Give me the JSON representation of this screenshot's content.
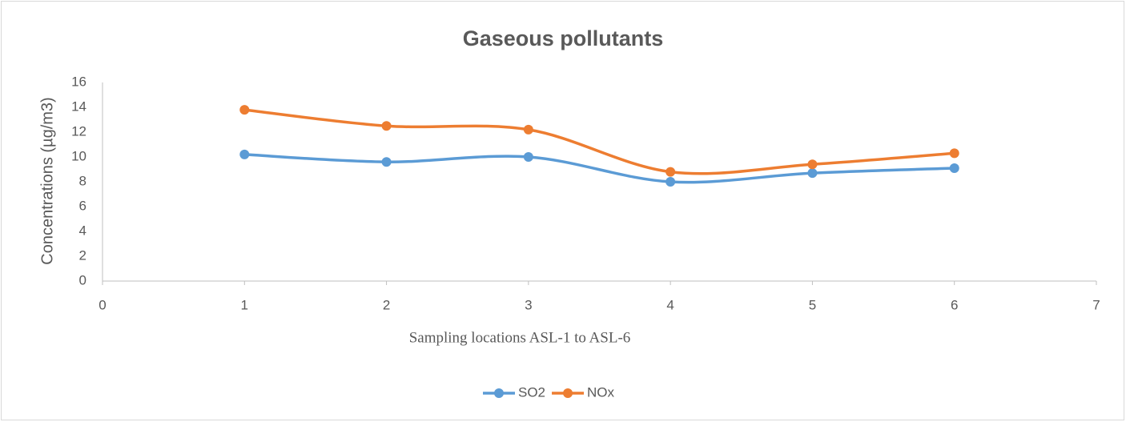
{
  "chart_data": {
    "type": "line",
    "title": "Gaseous pollutants",
    "x_label": "Sampling locations ASL-1 to ASL-6",
    "y_label": "Concentrations (µg/m3)",
    "x": [
      1,
      2,
      3,
      4,
      5,
      6
    ],
    "series": [
      {
        "name": "SO2",
        "color": "#5b9bd5",
        "values": [
          10.2,
          9.6,
          10.0,
          8.0,
          8.7,
          9.1
        ]
      },
      {
        "name": "NOx",
        "color": "#ed7d31",
        "values": [
          13.8,
          12.5,
          12.2,
          8.8,
          9.4,
          10.3
        ]
      }
    ],
    "xlim": [
      0,
      7
    ],
    "xticks": [
      0,
      1,
      2,
      3,
      4,
      5,
      6,
      7
    ],
    "ylim": [
      0,
      16
    ],
    "yticks": [
      0,
      2,
      4,
      6,
      8,
      10,
      12,
      14,
      16
    ],
    "smooth": true,
    "grid": false,
    "legend": "bottom"
  }
}
